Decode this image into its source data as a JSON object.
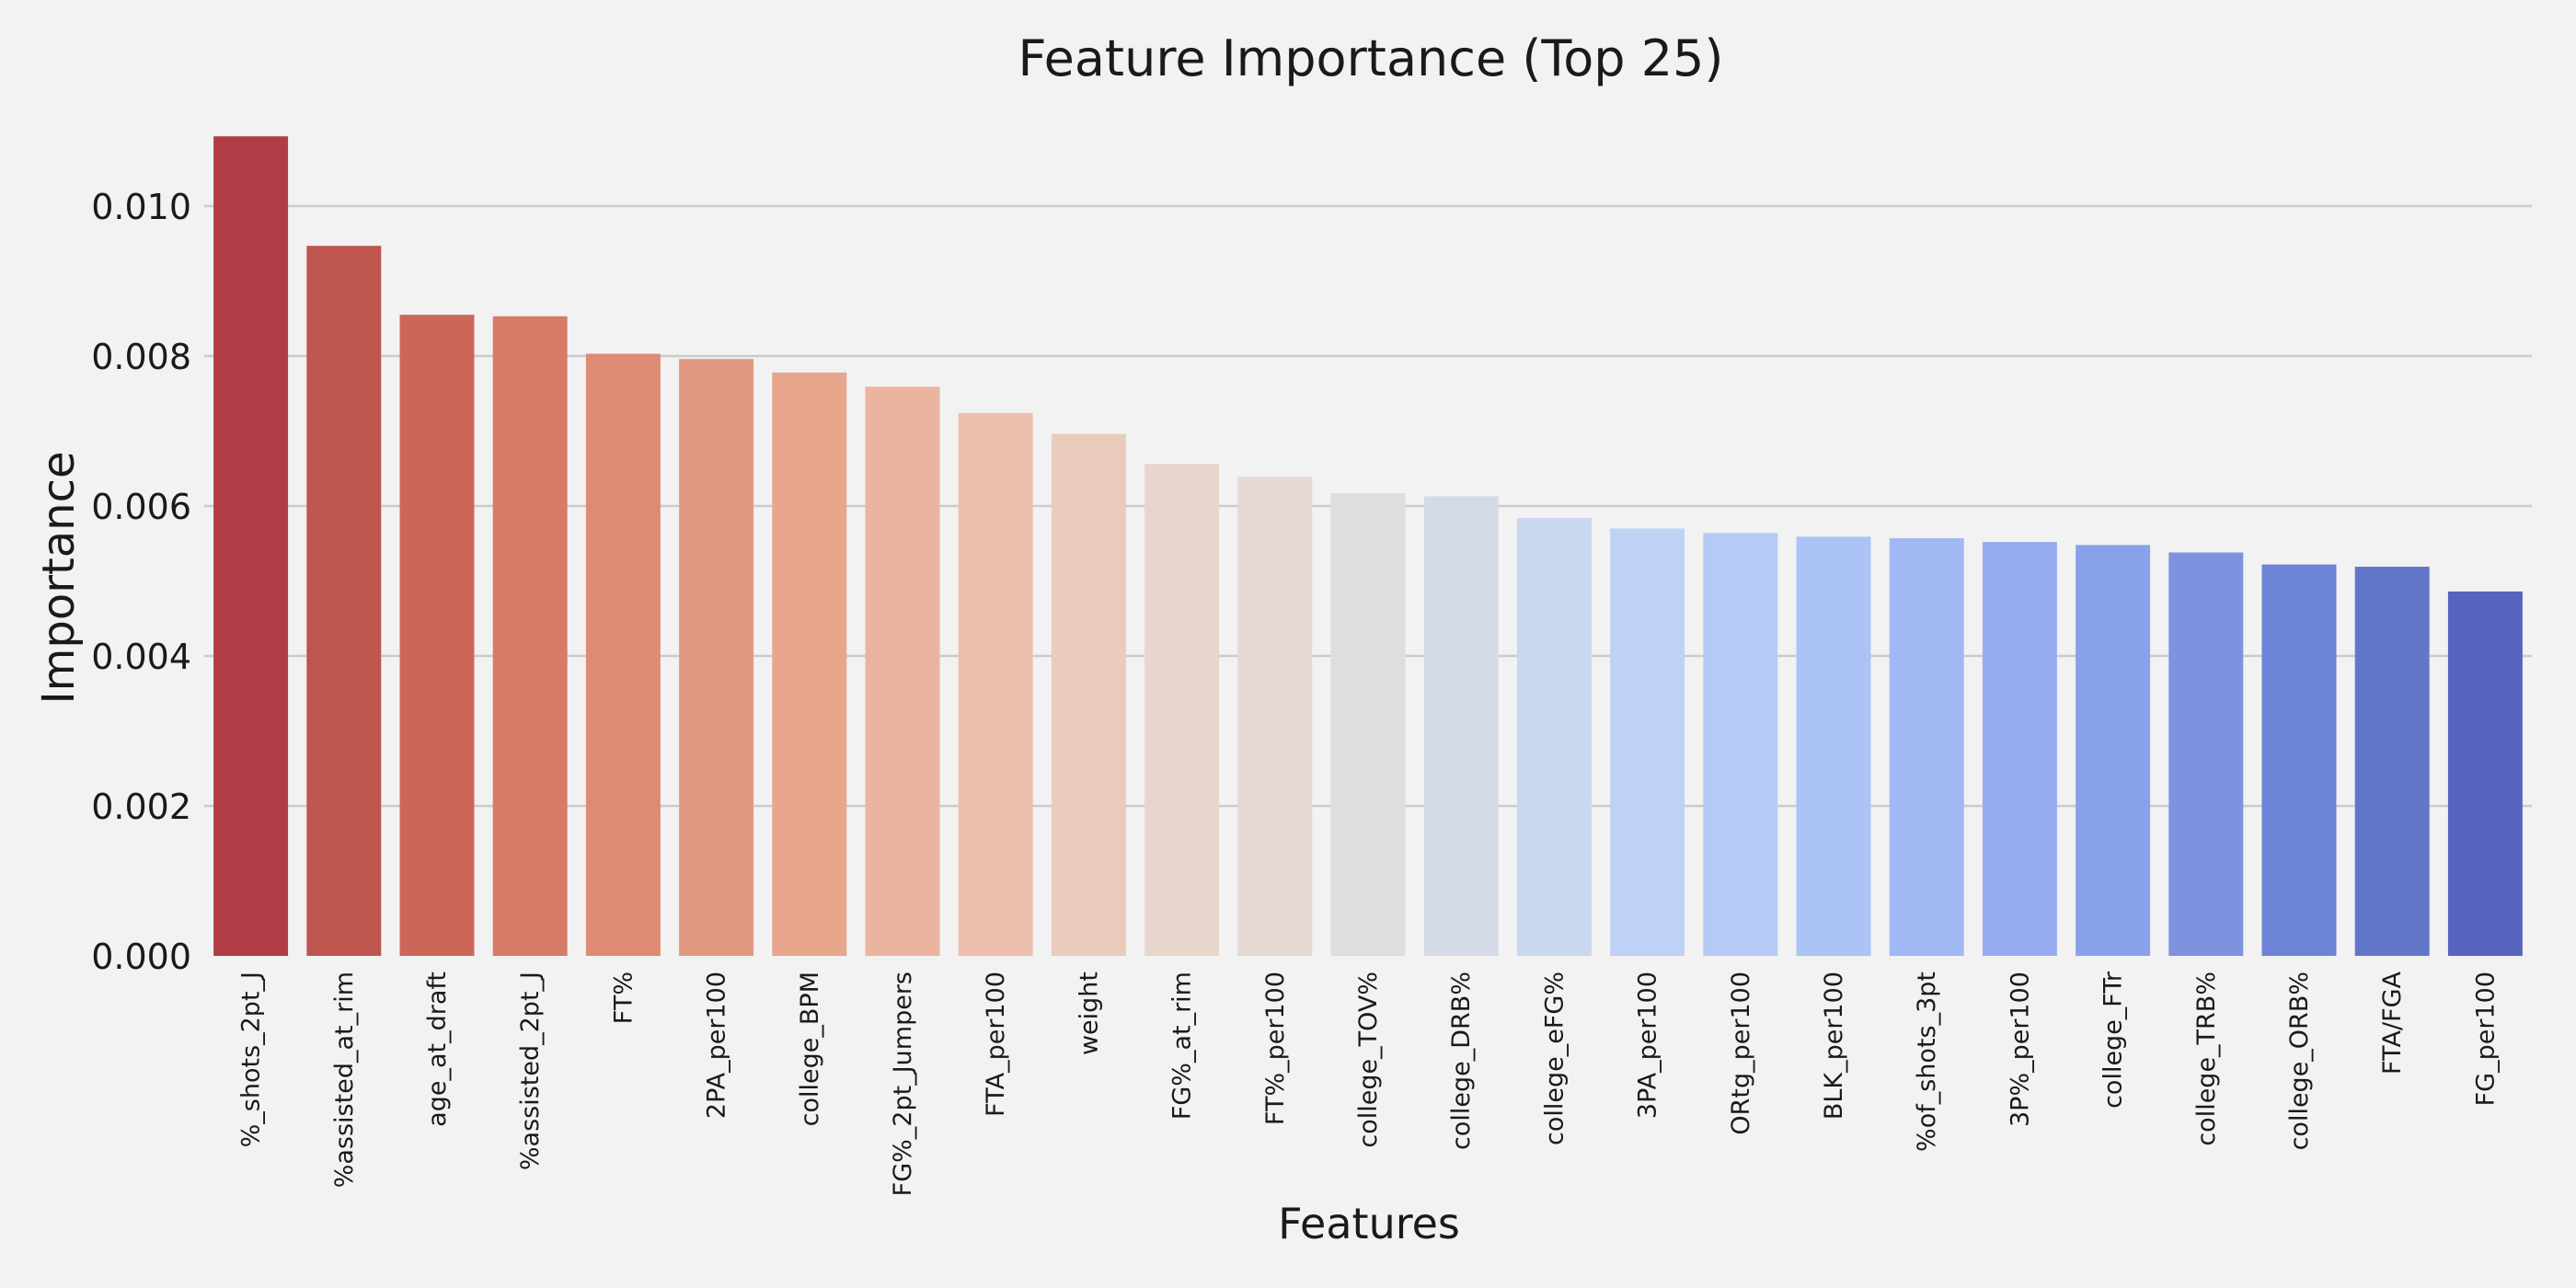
{
  "chart_data": {
    "type": "bar",
    "title": "Feature Importance (Top 25)",
    "xlabel": "Features",
    "ylabel": "Importance",
    "ylim": [
      0,
      0.011
    ],
    "yticks": [
      "0.000",
      "0.002",
      "0.004",
      "0.006",
      "0.008",
      "0.010"
    ],
    "ytick_values": [
      0,
      0.002,
      0.004,
      0.006,
      0.008,
      0.01
    ],
    "grid": "horizontal",
    "categories": [
      "%_shots_2pt_J",
      "%assisted_at_rim",
      "age_at_draft",
      "%assisted_2pt_J",
      "FT%",
      "2PA_per100",
      "college_BPM",
      "FG%_2pt_Jumpers",
      "FTA_per100",
      "weight",
      "FG%_at_rim",
      "FT%_per100",
      "college_TOV%",
      "college_DRB%",
      "college_eFG%",
      "3PA_per100",
      "ORtg_per100",
      "BLK_per100",
      "%of_shots_3pt",
      "3P%_per100",
      "college_FTr",
      "college_TRB%",
      "college_ORB%",
      "FTA/FGA",
      "FG_per100"
    ],
    "values": [
      0.01093,
      0.00947,
      0.00855,
      0.00853,
      0.00803,
      0.00796,
      0.00778,
      0.00759,
      0.00724,
      0.00696,
      0.00656,
      0.00639,
      0.00617,
      0.00613,
      0.00584,
      0.0057,
      0.00564,
      0.00559,
      0.00557,
      0.00552,
      0.00548,
      0.00538,
      0.00522,
      0.00519,
      0.00486
    ],
    "colors": [
      "#b13c45",
      "#bf554f",
      "#cb6659",
      "#d67b68",
      "#dd8b73",
      "#e29780",
      "#e8a68d",
      "#ebb49f",
      "#edc0ad",
      "#eacbbc",
      "#e6d6cc",
      "#e4d9d3",
      "#dddede",
      "#d4dbe6",
      "#c9d7ef",
      "#bfd2f5",
      "#b5cbf5",
      "#abc3f5",
      "#a0b8f4",
      "#96acf0",
      "#89a1e9",
      "#7e92e0",
      "#6d83d6",
      "#6276ca",
      "#5664bd"
    ],
    "grid_color": "#cbcbcb",
    "background": "#f2f2f2"
  }
}
